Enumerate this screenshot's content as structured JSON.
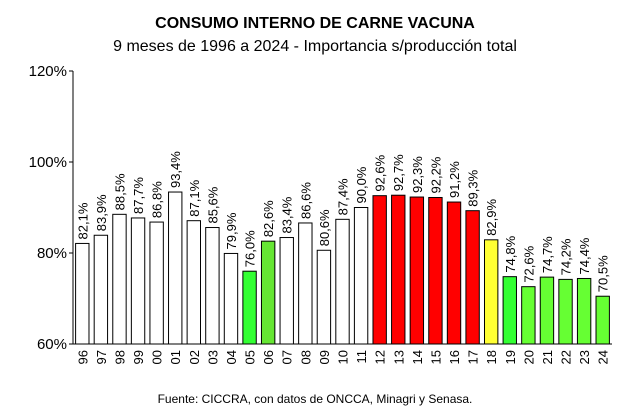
{
  "chart_data": {
    "type": "bar",
    "title": "CONSUMO INTERNO DE CARNE VACUNA",
    "subtitle": "9 meses de 1996 a 2024 - Importancia s/producción total",
    "source": "Fuente: CICCRA, con datos de ONCCA, Minagri y Senasa.",
    "categories": [
      "96",
      "97",
      "98",
      "99",
      "00",
      "01",
      "02",
      "03",
      "04",
      "05",
      "06",
      "07",
      "08",
      "09",
      "10",
      "11",
      "12",
      "13",
      "14",
      "15",
      "16",
      "17",
      "18",
      "19",
      "20",
      "21",
      "22",
      "23",
      "24"
    ],
    "values": [
      82.1,
      83.9,
      88.5,
      87.7,
      86.8,
      93.4,
      87.1,
      85.6,
      79.9,
      76.0,
      82.6,
      83.4,
      86.6,
      80.6,
      87.4,
      90.0,
      92.6,
      92.7,
      92.3,
      92.2,
      91.2,
      89.3,
      82.9,
      74.8,
      72.6,
      74.7,
      74.2,
      74.4,
      70.5
    ],
    "value_labels": [
      "82,1%",
      "83,9%",
      "88,5%",
      "87,7%",
      "86,8%",
      "93,4%",
      "87,1%",
      "85,6%",
      "79,9%",
      "76,0%",
      "82,6%",
      "83,4%",
      "86,6%",
      "80,6%",
      "87,4%",
      "90,0%",
      "92,6%",
      "92,7%",
      "92,3%",
      "92,2%",
      "91,2%",
      "89,3%",
      "82,9%",
      "74,8%",
      "72,6%",
      "74,7%",
      "74,2%",
      "74,4%",
      "70,5%"
    ],
    "colors": [
      "#ffffff",
      "#ffffff",
      "#ffffff",
      "#ffffff",
      "#ffffff",
      "#ffffff",
      "#ffffff",
      "#ffffff",
      "#ffffff",
      "#33ff33",
      "#66e633",
      "#ffffff",
      "#ffffff",
      "#ffffff",
      "#ffffff",
      "#ffffff",
      "#ff0000",
      "#ff0000",
      "#ff0000",
      "#ff0000",
      "#ff0000",
      "#ff0000",
      "#ffff33",
      "#33ff33",
      "#66ff33",
      "#66ff33",
      "#66ff33",
      "#66ff33",
      "#66ff33"
    ],
    "ylim": [
      60,
      120
    ],
    "yticks": [
      {
        "value": 60,
        "label": "60%"
      },
      {
        "value": 80,
        "label": "80%"
      },
      {
        "value": 100,
        "label": "100%"
      },
      {
        "value": 120,
        "label": "120%"
      }
    ],
    "grid": false
  }
}
